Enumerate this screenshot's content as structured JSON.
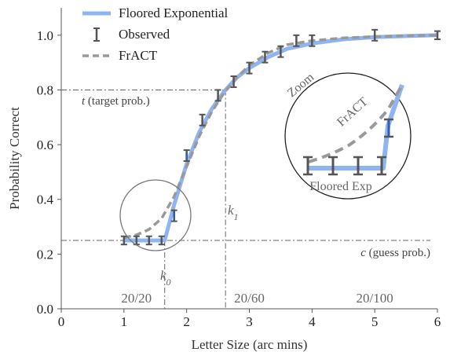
{
  "chart_data": {
    "type": "line",
    "xlabel": "Letter Size (arc mins)",
    "ylabel": "Probability Correct",
    "xlim": [
      0,
      6
    ],
    "ylim": [
      0,
      1.1
    ],
    "x_ticks": [
      0,
      1,
      2,
      3,
      4,
      5,
      6
    ],
    "y_ticks": [
      "0.0",
      "0.2",
      "0.4",
      "0.6",
      "0.8",
      "1.0"
    ],
    "legend": {
      "position": "top-left",
      "entries": [
        "Floored Exponential",
        "Observed",
        "FrACT"
      ]
    },
    "series": [
      {
        "name": "Floored Exponential",
        "style": "solid",
        "color": "#8fb4f2",
        "x": [
          1.0,
          1.65,
          1.8,
          2.0,
          2.2,
          2.4,
          2.6,
          2.8,
          3.0,
          3.3,
          3.6,
          4.0,
          4.5,
          5.0,
          5.5,
          6.0
        ],
        "y": [
          0.25,
          0.25,
          0.38,
          0.53,
          0.645,
          0.73,
          0.795,
          0.845,
          0.88,
          0.92,
          0.95,
          0.97,
          0.985,
          0.993,
          0.997,
          1.0
        ]
      },
      {
        "name": "FrACT",
        "style": "dashed",
        "color": "#999999",
        "x": [
          1.0,
          1.2,
          1.4,
          1.6,
          1.8,
          2.0,
          2.2,
          2.4,
          2.6,
          2.8,
          3.0,
          3.3,
          3.6,
          4.0,
          4.5,
          5.0,
          5.5,
          6.0
        ],
        "y": [
          0.26,
          0.27,
          0.29,
          0.33,
          0.41,
          0.52,
          0.63,
          0.72,
          0.79,
          0.845,
          0.89,
          0.935,
          0.965,
          0.98,
          0.99,
          0.995,
          0.998,
          1.0
        ]
      },
      {
        "name": "Observed",
        "style": "errorbar",
        "color": "#555555",
        "points": [
          {
            "x": 1.0,
            "y": 0.25,
            "err": 0.015
          },
          {
            "x": 1.2,
            "y": 0.25,
            "err": 0.015
          },
          {
            "x": 1.4,
            "y": 0.25,
            "err": 0.015
          },
          {
            "x": 1.6,
            "y": 0.25,
            "err": 0.015
          },
          {
            "x": 1.8,
            "y": 0.34,
            "err": 0.02
          },
          {
            "x": 2.0,
            "y": 0.56,
            "err": 0.02
          },
          {
            "x": 2.25,
            "y": 0.69,
            "err": 0.02
          },
          {
            "x": 2.5,
            "y": 0.78,
            "err": 0.02
          },
          {
            "x": 2.75,
            "y": 0.83,
            "err": 0.02
          },
          {
            "x": 3.0,
            "y": 0.88,
            "err": 0.02
          },
          {
            "x": 3.25,
            "y": 0.92,
            "err": 0.02
          },
          {
            "x": 3.5,
            "y": 0.94,
            "err": 0.02
          },
          {
            "x": 3.75,
            "y": 0.98,
            "err": 0.02
          },
          {
            "x": 4.0,
            "y": 0.98,
            "err": 0.02
          },
          {
            "x": 5.0,
            "y": 1.0,
            "err": 0.02
          },
          {
            "x": 6.0,
            "y": 1.0,
            "err": 0.015
          }
        ]
      }
    ],
    "reference_lines": {
      "target_prob": {
        "y": 0.8,
        "label_t": "t",
        "label_rest": " (target prob.)"
      },
      "guess_prob": {
        "y": 0.25,
        "label_c": "c",
        "label_rest": " (guess prob.)"
      },
      "k0": {
        "x": 1.65,
        "label": "k",
        "sub": "0"
      },
      "k1": {
        "x": 2.62,
        "label": "k",
        "sub": "1"
      }
    },
    "acuity_labels": [
      {
        "x": 1.2,
        "text": "20/20"
      },
      {
        "x": 3.0,
        "text": "20/60"
      },
      {
        "x": 5.0,
        "text": "20/100"
      }
    ],
    "zoom_inset": {
      "label": "Zoom",
      "fract_label": "FrACT",
      "floored_label": "Floored Exp"
    }
  }
}
